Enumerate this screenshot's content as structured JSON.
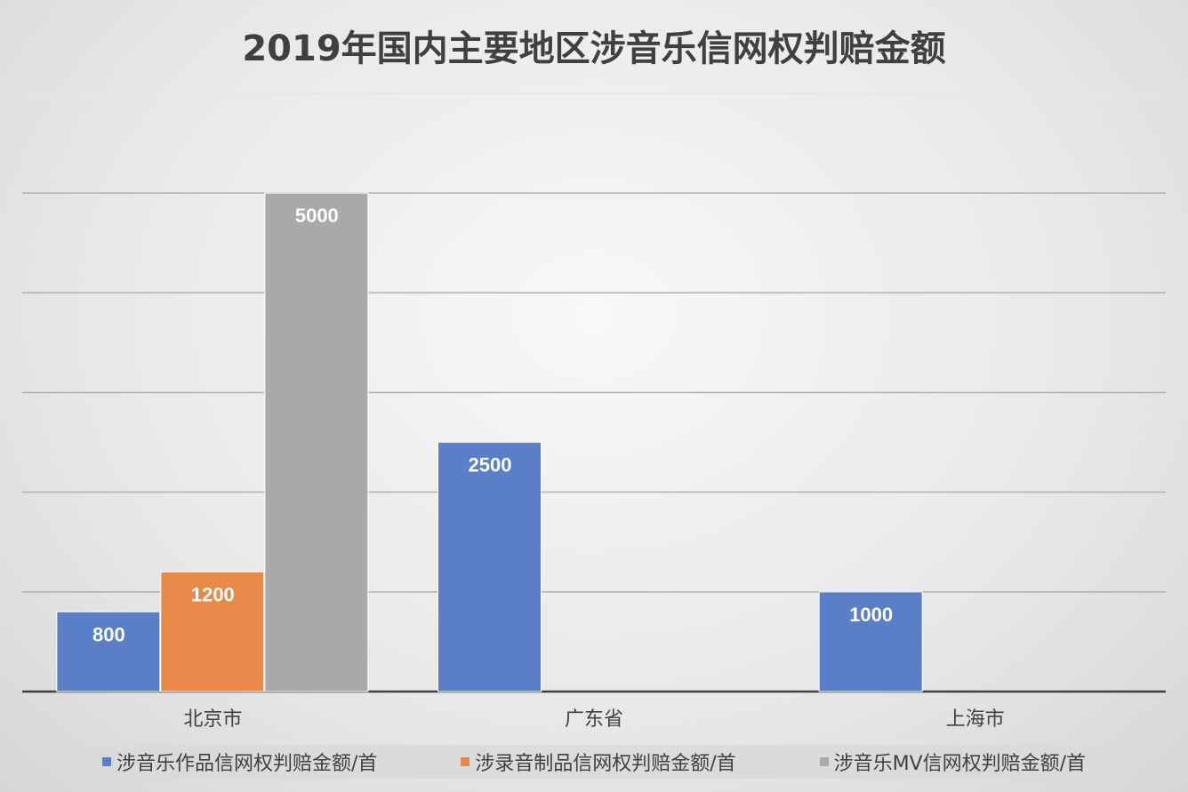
{
  "chart_data": {
    "type": "bar",
    "title": "2019年国内主要地区涉音乐信网权判赔金额",
    "categories": [
      "北京市",
      "广东省",
      "上海市"
    ],
    "series": [
      {
        "name": "涉音乐作品信网权判赔金额/首",
        "color": "#5b7fc7",
        "values": [
          800,
          2500,
          1000
        ]
      },
      {
        "name": "涉录音制品信网权判赔金额/首",
        "color": "#e8894a",
        "values": [
          1200,
          null,
          null
        ]
      },
      {
        "name": "涉音乐MV信网权判赔金额/首",
        "color": "#a9a9a9",
        "values": [
          5000,
          null,
          null
        ]
      }
    ],
    "ylim": [
      0,
      6000
    ],
    "grid": true,
    "legend_position": "bottom",
    "data_labels": true
  }
}
